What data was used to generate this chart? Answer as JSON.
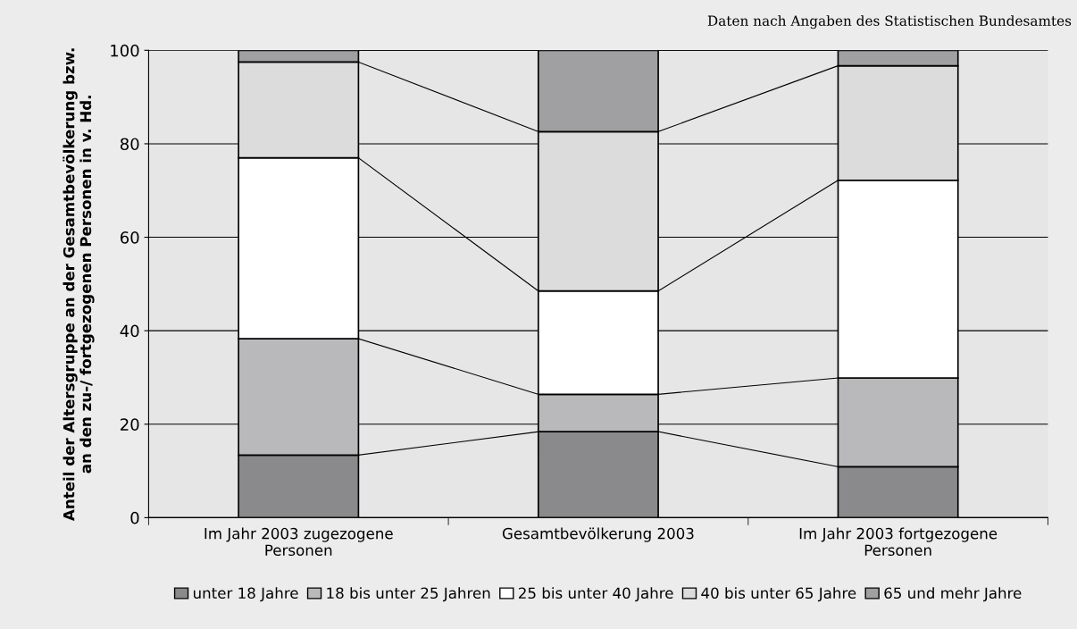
{
  "chart_data": {
    "type": "bar",
    "stacked": true,
    "categories": [
      "Im Jahr 2003 zugezogene\nPersonen",
      "Gesamtbevölkerung 2003",
      "Im Jahr 2003 fortgezogene\nPersonen"
    ],
    "series": [
      {
        "name": "unter 18 Jahre",
        "color": "#8a8a8c",
        "values": [
          13.4,
          18.4,
          10.9
        ]
      },
      {
        "name": "18 bis unter 25 Jahren",
        "color": "#b9b9bb",
        "values": [
          24.9,
          8.0,
          19.0
        ]
      },
      {
        "name": "25 bis unter 40 Jahre",
        "color": "#ffffff",
        "values": [
          38.7,
          22.1,
          42.3
        ]
      },
      {
        "name": "40 bis unter 65 Jahre",
        "color": "#dcdcdd",
        "values": [
          20.5,
          34.1,
          24.5
        ]
      },
      {
        "name": "65 und mehr Jahre",
        "color": "#a0a0a2",
        "values": [
          2.5,
          17.4,
          3.3
        ]
      }
    ],
    "ylabel": "Anteil der Altersgruppe an der Gesamtbevölkerung bzw.\nan den zu-/ fortgezogenen Personen in v. Hd.",
    "ylim": [
      0,
      100
    ],
    "yticks": [
      0,
      20,
      40,
      60,
      80,
      100
    ],
    "grid": "y",
    "legend": "bottom",
    "annotations": [
      "Daten nach Angaben des Statistischen Bundesamtes"
    ]
  }
}
